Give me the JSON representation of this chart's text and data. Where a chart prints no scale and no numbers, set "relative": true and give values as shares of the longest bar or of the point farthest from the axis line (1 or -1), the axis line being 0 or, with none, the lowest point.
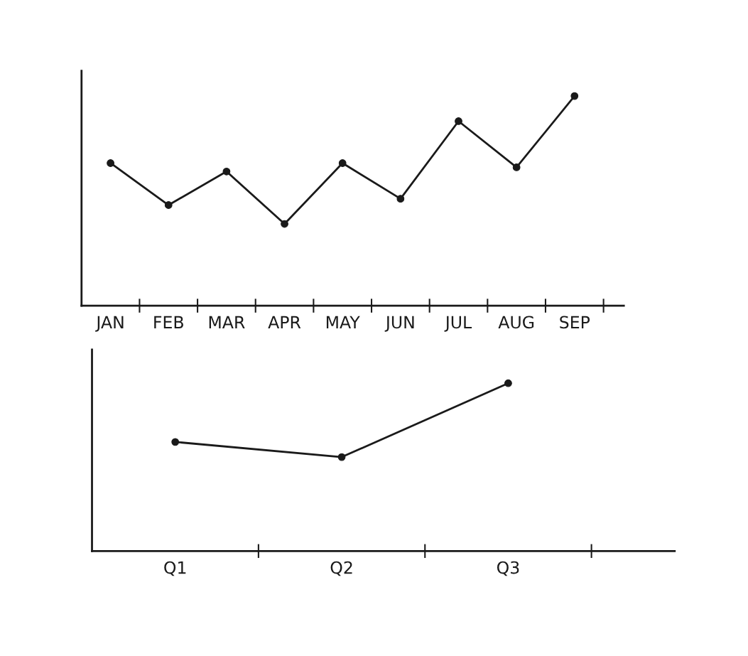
{
  "chart_data": [
    {
      "type": "line",
      "relative": true,
      "categories": [
        "JAN",
        "FEB",
        "MAR",
        "APR",
        "MAY",
        "JUN",
        "JUL",
        "AUG",
        "SEP"
      ],
      "series": [
        {
          "color": "#1a1a1a",
          "values": [
            0.68,
            0.48,
            0.64,
            0.39,
            0.68,
            0.51,
            0.88,
            0.66,
            1.0
          ]
        }
      ],
      "marker": "circle",
      "line_style": "solid",
      "tick_labels": "x"
    },
    {
      "type": "line",
      "relative": true,
      "categories": [
        "Q1",
        "Q2",
        "Q3"
      ],
      "series": [
        {
          "color": "#1a1a1a",
          "values": [
            0.65,
            0.56,
            1.0
          ]
        }
      ],
      "marker": "circle",
      "line_style": "solid",
      "tick_labels": "x"
    }
  ]
}
